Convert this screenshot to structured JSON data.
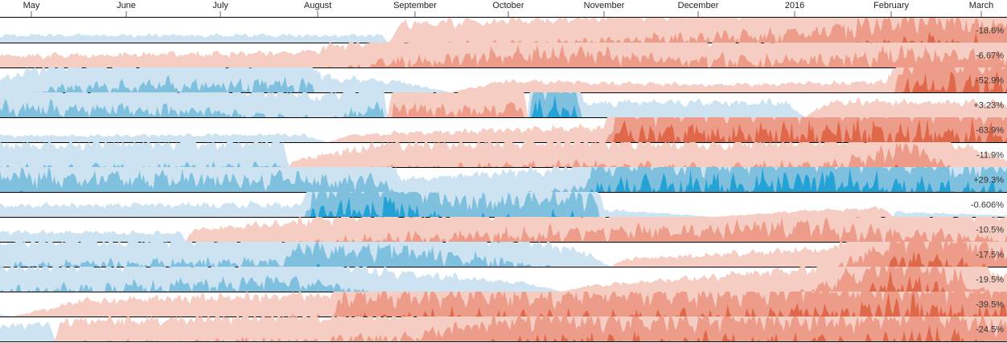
{
  "chart_data": {
    "type": "horizon",
    "x_axis": {
      "ticks": [
        "May",
        "June",
        "July",
        "August",
        "September",
        "October",
        "November",
        "December",
        "2016",
        "February",
        "March"
      ]
    },
    "bands": 3,
    "colors": {
      "positive": [
        "#c6dbef",
        "#6baed6",
        "#08519c"
      ],
      "negative": [
        "#fcbba1",
        "#fb6a4a",
        "#cb181d"
      ],
      "positive_display": [
        "#cde3f1",
        "#7fc0de",
        "#24a2d6"
      ],
      "negative_display": [
        "#f6cdc3",
        "#ec9c88",
        "#e0684a"
      ]
    },
    "rows": [
      {
        "label": "-18.6%",
        "profile": [
          [
            0,
            0.3
          ],
          [
            0.38,
            0.28
          ],
          [
            0.4,
            -0.75
          ],
          [
            0.55,
            -0.95
          ],
          [
            0.8,
            -1.35
          ],
          [
            0.86,
            -1.7
          ],
          [
            0.92,
            -1.9
          ],
          [
            1.0,
            -1.75
          ]
        ]
      },
      {
        "label": "-6.67%",
        "profile": [
          [
            0,
            -0.45
          ],
          [
            0.3,
            -0.6
          ],
          [
            0.38,
            -1.2
          ],
          [
            0.55,
            -1.55
          ],
          [
            0.72,
            -1.2
          ],
          [
            0.82,
            -1.3
          ],
          [
            0.9,
            -1.55
          ],
          [
            1.0,
            -1.35
          ]
        ]
      },
      {
        "label": "-52.9%",
        "profile": [
          [
            0,
            0.5
          ],
          [
            0.06,
            1.2
          ],
          [
            0.31,
            1.35
          ],
          [
            0.32,
            0.6
          ],
          [
            0.4,
            0.4
          ],
          [
            0.5,
            -0.45
          ],
          [
            0.7,
            -0.3
          ],
          [
            0.88,
            -0.4
          ],
          [
            0.9,
            -2.3
          ],
          [
            1.0,
            -2.2
          ]
        ]
      },
      {
        "label": "+3.23%",
        "profile": [
          [
            0,
            1.4
          ],
          [
            0.22,
            1.2
          ],
          [
            0.32,
            0.8
          ],
          [
            0.38,
            1.4
          ],
          [
            0.39,
            -1.4
          ],
          [
            0.45,
            -1.2
          ],
          [
            0.52,
            -1.4
          ],
          [
            0.53,
            2.3
          ],
          [
            0.57,
            2.3
          ],
          [
            0.58,
            0.6
          ],
          [
            0.78,
            0.6
          ],
          [
            0.82,
            -0.6
          ],
          [
            0.96,
            -0.6
          ],
          [
            1.0,
            -0.55
          ]
        ]
      },
      {
        "label": "-63.9%",
        "profile": [
          [
            0,
            0.25
          ],
          [
            0.3,
            0.3
          ],
          [
            0.35,
            -0.3
          ],
          [
            0.6,
            -0.6
          ],
          [
            0.61,
            -2.2
          ],
          [
            0.8,
            -2.4
          ],
          [
            1.0,
            -2.25
          ]
        ]
      },
      {
        "label": "-11.9%",
        "profile": [
          [
            0,
            0.9
          ],
          [
            0.28,
            1.0
          ],
          [
            0.29,
            -0.25
          ],
          [
            0.38,
            -0.9
          ],
          [
            0.58,
            -1.05
          ],
          [
            0.7,
            -0.9
          ],
          [
            0.84,
            -1.1
          ],
          [
            0.9,
            -1.85
          ],
          [
            0.94,
            -1.1
          ],
          [
            1.0,
            -0.3
          ]
        ]
      },
      {
        "label": "+29.3%",
        "profile": [
          [
            0,
            1.6
          ],
          [
            0.38,
            1.4
          ],
          [
            0.4,
            0.5
          ],
          [
            0.55,
            0.9
          ],
          [
            0.58,
            1.15
          ],
          [
            0.59,
            2.1
          ],
          [
            0.8,
            2.4
          ],
          [
            0.9,
            2.1
          ],
          [
            1.0,
            1.9
          ]
        ]
      },
      {
        "label": "-0.606%",
        "profile": [
          [
            0,
            0.45
          ],
          [
            0.3,
            0.5
          ],
          [
            0.31,
            2.1
          ],
          [
            0.4,
            2.4
          ],
          [
            0.45,
            1.6
          ],
          [
            0.59,
            1.8
          ],
          [
            0.6,
            0.3
          ],
          [
            0.8,
            -0.25
          ],
          [
            0.88,
            -0.35
          ],
          [
            0.89,
            0.2
          ],
          [
            1.0,
            0.05
          ]
        ]
      },
      {
        "label": "-10.5%",
        "profile": [
          [
            0,
            0.4
          ],
          [
            0.18,
            0.35
          ],
          [
            0.19,
            -0.45
          ],
          [
            0.38,
            -1.1
          ],
          [
            0.55,
            -1.3
          ],
          [
            0.8,
            -1.6
          ],
          [
            0.9,
            -1.25
          ],
          [
            1.0,
            -1.1
          ]
        ]
      },
      {
        "label": "-17.5%",
        "profile": [
          [
            0,
            1.0
          ],
          [
            0.28,
            1.2
          ],
          [
            0.3,
            1.75
          ],
          [
            0.4,
            1.6
          ],
          [
            0.5,
            1.15
          ],
          [
            0.58,
            0.6
          ],
          [
            0.62,
            -0.3
          ],
          [
            0.82,
            -0.7
          ],
          [
            0.9,
            -2.2
          ],
          [
            0.96,
            -2.0
          ],
          [
            1.0,
            -1.4
          ]
        ]
      },
      {
        "label": "-19.5%",
        "profile": [
          [
            0,
            0.95
          ],
          [
            0.3,
            1.4
          ],
          [
            0.38,
            0.8
          ],
          [
            0.52,
            0.35
          ],
          [
            0.58,
            -0.2
          ],
          [
            0.8,
            -0.9
          ],
          [
            0.9,
            -2.4
          ],
          [
            0.95,
            -1.6
          ],
          [
            1.0,
            -0.55
          ]
        ]
      },
      {
        "label": "-39.5%",
        "profile": [
          [
            0,
            0.1
          ],
          [
            0.08,
            -0.6
          ],
          [
            0.33,
            -0.9
          ],
          [
            0.34,
            -1.8
          ],
          [
            0.7,
            -1.85
          ],
          [
            0.82,
            -2.1
          ],
          [
            0.9,
            -2.3
          ],
          [
            1.0,
            -2.0
          ]
        ]
      },
      {
        "label": "-24.5%",
        "profile": [
          [
            0,
            0.6
          ],
          [
            0.05,
            0.7
          ],
          [
            0.06,
            -0.8
          ],
          [
            0.4,
            -1.1
          ],
          [
            0.5,
            -1.85
          ],
          [
            0.7,
            -1.9
          ],
          [
            0.85,
            -1.8
          ],
          [
            0.92,
            -2.2
          ],
          [
            1.0,
            -1.55
          ]
        ]
      }
    ]
  }
}
